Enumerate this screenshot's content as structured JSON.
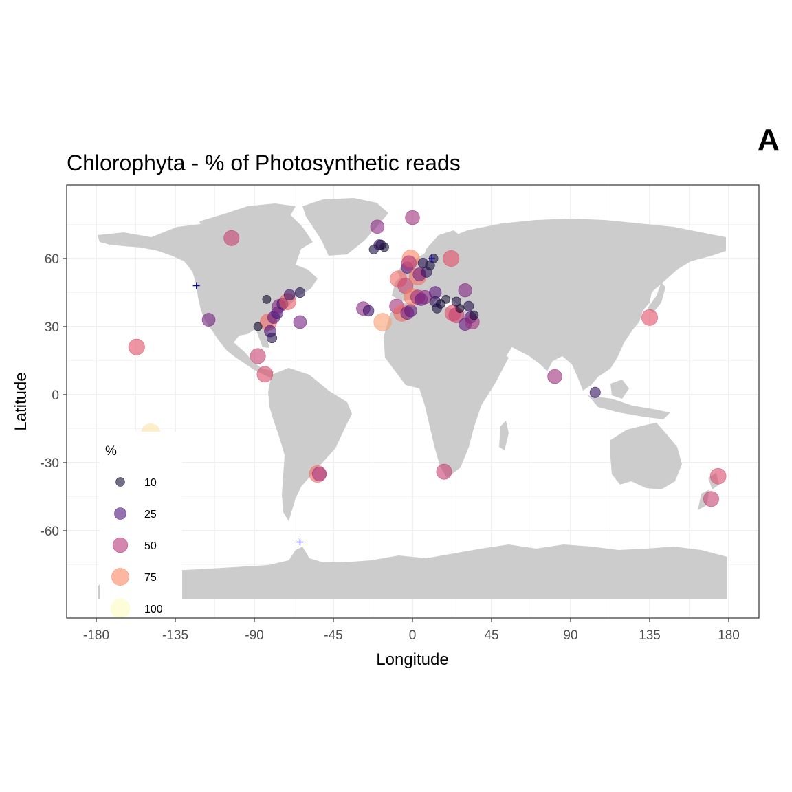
{
  "panel_tag": "A",
  "chart_data": {
    "type": "scatter",
    "title": "Chlorophyta - % of Photosynthetic reads",
    "xlabel": "Longitude",
    "ylabel": "Latitude",
    "xlim": [
      -180,
      180
    ],
    "ylim": [
      -90,
      90
    ],
    "xticks": [
      -180,
      -135,
      -90,
      -45,
      0,
      45,
      90,
      135,
      180
    ],
    "xtick_labels": [
      "-180",
      "-135",
      "-90",
      "-45",
      "0",
      "45",
      "90",
      "135",
      "180"
    ],
    "yticks": [
      -60,
      -30,
      0,
      30,
      60
    ],
    "ytick_labels": [
      "-60",
      "-30",
      "0",
      "30",
      "60"
    ],
    "grid": true,
    "basemap": "world land masses (grey)",
    "legend": {
      "title": "%",
      "position": "bottom-left inside",
      "entries": [
        {
          "label": "10",
          "value": 10
        },
        {
          "label": "25",
          "value": 25
        },
        {
          "label": "50",
          "value": 50
        },
        {
          "label": "75",
          "value": 75
        },
        {
          "label": "100",
          "value": 100
        }
      ]
    },
    "colors": {
      "low": "#1d1147",
      "mid_low": "#51127c",
      "mid": "#b73779",
      "mid_high": "#f1605d",
      "high": "#fc9f6c",
      "max": "#fcfdbf",
      "land": "#cccccc",
      "cross_marker": "#0000cc"
    },
    "points": [
      {
        "lon": -103,
        "lat": 69,
        "pct": 55
      },
      {
        "lon": -157,
        "lat": 21,
        "pct": 62
      },
      {
        "lon": -149,
        "lat": -17,
        "pct": 95
      },
      {
        "lon": -116,
        "lat": 33,
        "pct": 35
      },
      {
        "lon": -88,
        "lat": 17,
        "pct": 55
      },
      {
        "lon": -84,
        "lat": 9,
        "pct": 60
      },
      {
        "lon": -82,
        "lat": 32,
        "pct": 68
      },
      {
        "lon": -81,
        "lat": 28,
        "pct": 25
      },
      {
        "lon": -80,
        "lat": 25,
        "pct": 15
      },
      {
        "lon": -79,
        "lat": 34,
        "pct": 28
      },
      {
        "lon": -77,
        "lat": 36,
        "pct": 25
      },
      {
        "lon": -76,
        "lat": 39,
        "pct": 38
      },
      {
        "lon": -74,
        "lat": 40,
        "pct": 22
      },
      {
        "lon": -71,
        "lat": 41,
        "pct": 65
      },
      {
        "lon": -70,
        "lat": 44,
        "pct": 20
      },
      {
        "lon": -64,
        "lat": 45,
        "pct": 15
      },
      {
        "lon": -64,
        "lat": 32,
        "pct": 35
      },
      {
        "lon": -83,
        "lat": 42,
        "pct": 8
      },
      {
        "lon": -88,
        "lat": 30,
        "pct": 8
      },
      {
        "lon": -54,
        "lat": -35,
        "pct": 70
      },
      {
        "lon": -53,
        "lat": -35,
        "pct": 45
      },
      {
        "lon": -20,
        "lat": 74,
        "pct": 40
      },
      {
        "lon": -22,
        "lat": 64,
        "pct": 12
      },
      {
        "lon": -19,
        "lat": 66,
        "pct": 18
      },
      {
        "lon": -18,
        "lat": 66,
        "pct": 15
      },
      {
        "lon": -16,
        "lat": 65,
        "pct": 10
      },
      {
        "lon": -28,
        "lat": 38,
        "pct": 40
      },
      {
        "lon": -25,
        "lat": 37,
        "pct": 20
      },
      {
        "lon": -17,
        "lat": 32,
        "pct": 80
      },
      {
        "lon": 0,
        "lat": 78,
        "pct": 45
      },
      {
        "lon": -8,
        "lat": 51,
        "pct": 68
      },
      {
        "lon": -4,
        "lat": 48,
        "pct": 55
      },
      {
        "lon": -3,
        "lat": 56,
        "pct": 25
      },
      {
        "lon": -1,
        "lat": 60,
        "pct": 75
      },
      {
        "lon": -2,
        "lat": 58,
        "pct": 50
      },
      {
        "lon": 3,
        "lat": 52,
        "pct": 70
      },
      {
        "lon": 4,
        "lat": 53,
        "pct": 35
      },
      {
        "lon": 8,
        "lat": 54,
        "pct": 18
      },
      {
        "lon": 6,
        "lat": 58,
        "pct": 15
      },
      {
        "lon": 10,
        "lat": 57,
        "pct": 12
      },
      {
        "lon": 12,
        "lat": 60,
        "pct": 10
      },
      {
        "lon": 22,
        "lat": 60,
        "pct": 62
      },
      {
        "lon": -9,
        "lat": 39,
        "pct": 45
      },
      {
        "lon": -6,
        "lat": 36,
        "pct": 70
      },
      {
        "lon": -3,
        "lat": 36,
        "pct": 35
      },
      {
        "lon": -1,
        "lat": 37,
        "pct": 30
      },
      {
        "lon": 0,
        "lat": 43,
        "pct": 72
      },
      {
        "lon": 3,
        "lat": 43,
        "pct": 45
      },
      {
        "lon": 5,
        "lat": 42,
        "pct": 30
      },
      {
        "lon": 7,
        "lat": 43,
        "pct": 40
      },
      {
        "lon": 13,
        "lat": 45,
        "pct": 28
      },
      {
        "lon": 13,
        "lat": 41,
        "pct": 18
      },
      {
        "lon": 14,
        "lat": 38,
        "pct": 12
      },
      {
        "lon": 16,
        "lat": 40,
        "pct": 10
      },
      {
        "lon": 19,
        "lat": 42,
        "pct": 8
      },
      {
        "lon": 23,
        "lat": 36,
        "pct": 62
      },
      {
        "lon": 25,
        "lat": 35,
        "pct": 55
      },
      {
        "lon": 25,
        "lat": 41,
        "pct": 12
      },
      {
        "lon": 27,
        "lat": 38,
        "pct": 8
      },
      {
        "lon": 30,
        "lat": 46,
        "pct": 38
      },
      {
        "lon": 30,
        "lat": 31,
        "pct": 30
      },
      {
        "lon": 33,
        "lat": 34,
        "pct": 25
      },
      {
        "lon": 34,
        "lat": 32,
        "pct": 45
      },
      {
        "lon": 35,
        "lat": 35,
        "pct": 10
      },
      {
        "lon": 32,
        "lat": 39,
        "pct": 15
      },
      {
        "lon": 18,
        "lat": -34,
        "pct": 55
      },
      {
        "lon": 81,
        "lat": 8,
        "pct": 45
      },
      {
        "lon": 104,
        "lat": 1,
        "pct": 18
      },
      {
        "lon": 135,
        "lat": 34,
        "pct": 62
      },
      {
        "lon": 170,
        "lat": -46,
        "pct": 55
      },
      {
        "lon": 174,
        "lat": -36,
        "pct": 60
      }
    ],
    "zero_markers": [
      {
        "lon": -123,
        "lat": 48
      },
      {
        "lon": 11,
        "lat": 60
      },
      {
        "lon": -64,
        "lat": -65
      }
    ]
  }
}
